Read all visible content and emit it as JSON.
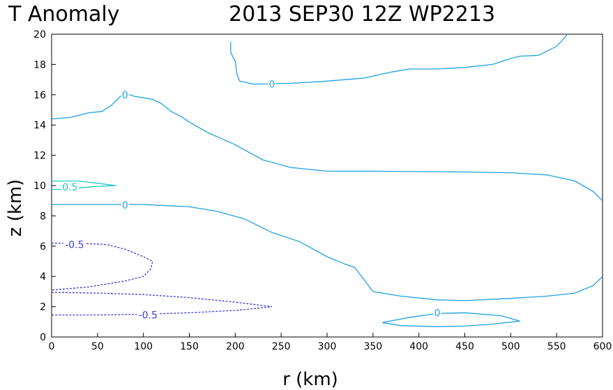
{
  "chart_data": {
    "type": "contour",
    "title_left": "T Anomaly",
    "title_right": "2013 SEP30 12Z   WP2213",
    "xlabel": "r (km)",
    "ylabel": "z (km)",
    "xlim": [
      0,
      600
    ],
    "ylim": [
      0,
      20
    ],
    "xticks": [
      "0",
      "50",
      "100",
      "150",
      "200",
      "250",
      "300",
      "350",
      "400",
      "450",
      "500",
      "550",
      "600"
    ],
    "yticks": [
      "0",
      "2",
      "4",
      "6",
      "8",
      "10",
      "12",
      "14",
      "16",
      "18",
      "20"
    ],
    "grid": false,
    "colors": {
      "zero": "#1ea0e6",
      "positive": "#1ec8c8",
      "negative": "#3c3cdc"
    },
    "contours": [
      {
        "level": 0,
        "label": "0",
        "label_pos": [
          240,
          16.7
        ],
        "style": "solid",
        "color_key": "zero",
        "points": [
          [
            195,
            19.5
          ],
          [
            195,
            18.8
          ],
          [
            200,
            18.2
          ],
          [
            202,
            17.3
          ],
          [
            205,
            16.9
          ],
          [
            220,
            16.7
          ],
          [
            260,
            16.75
          ],
          [
            300,
            16.9
          ],
          [
            340,
            17.1
          ],
          [
            370,
            17.5
          ],
          [
            390,
            17.7
          ],
          [
            420,
            17.7
          ],
          [
            450,
            17.8
          ],
          [
            480,
            18.0
          ],
          [
            500,
            18.4
          ],
          [
            510,
            18.55
          ],
          [
            530,
            18.6
          ],
          [
            550,
            19.2
          ],
          [
            562,
            20
          ]
        ]
      },
      {
        "level": 0,
        "label": "0",
        "label_pos": [
          80,
          16.0
        ],
        "style": "solid",
        "color_key": "zero",
        "points": [
          [
            0,
            14.4
          ],
          [
            20,
            14.5
          ],
          [
            40,
            14.8
          ],
          [
            55,
            14.9
          ],
          [
            65,
            15.3
          ],
          [
            75,
            15.9
          ],
          [
            80,
            16.1
          ],
          [
            90,
            15.9
          ],
          [
            110,
            15.7
          ],
          [
            120,
            15.4
          ],
          [
            130,
            14.9
          ],
          [
            140,
            14.6
          ],
          [
            150,
            14.2
          ],
          [
            170,
            13.5
          ],
          [
            200,
            12.7
          ],
          [
            230,
            11.7
          ],
          [
            260,
            11.2
          ],
          [
            300,
            10.95
          ],
          [
            350,
            10.95
          ],
          [
            400,
            10.92
          ],
          [
            450,
            10.9
          ],
          [
            500,
            10.85
          ],
          [
            540,
            10.7
          ],
          [
            570,
            10.3
          ],
          [
            590,
            9.6
          ],
          [
            600,
            9.0
          ]
        ]
      },
      {
        "level": 0,
        "label": "0",
        "label_pos": [
          80,
          8.7
        ],
        "style": "solid",
        "color_key": "zero",
        "points": [
          [
            0,
            8.75
          ],
          [
            50,
            8.75
          ],
          [
            100,
            8.75
          ],
          [
            150,
            8.6
          ],
          [
            180,
            8.3
          ],
          [
            210,
            7.8
          ],
          [
            240,
            6.9
          ],
          [
            270,
            6.3
          ],
          [
            300,
            5.3
          ],
          [
            320,
            4.8
          ],
          [
            330,
            4.6
          ],
          [
            340,
            3.8
          ],
          [
            350,
            3.0
          ],
          [
            380,
            2.7
          ],
          [
            420,
            2.45
          ],
          [
            450,
            2.4
          ],
          [
            500,
            2.55
          ],
          [
            540,
            2.7
          ],
          [
            570,
            2.9
          ],
          [
            590,
            3.4
          ],
          [
            600,
            4.0
          ]
        ]
      },
      {
        "level": 0,
        "label": "0",
        "label_pos": [
          420,
          1.6
        ],
        "style": "solid",
        "color_key": "zero",
        "points": [
          [
            360,
            0.95
          ],
          [
            390,
            1.3
          ],
          [
            420,
            1.55
          ],
          [
            450,
            1.6
          ],
          [
            490,
            1.4
          ],
          [
            510,
            1.05
          ],
          [
            480,
            0.85
          ],
          [
            450,
            0.72
          ],
          [
            420,
            0.68
          ],
          [
            380,
            0.75
          ],
          [
            360,
            0.95
          ]
        ]
      },
      {
        "level": 0.5,
        "label": "0.5",
        "label_pos": [
          20,
          9.9
        ],
        "style": "solid",
        "color_key": "positive",
        "points": [
          [
            0,
            10.3
          ],
          [
            30,
            10.3
          ],
          [
            50,
            10.15
          ],
          [
            70,
            10.0
          ],
          [
            50,
            9.95
          ],
          [
            30,
            9.85
          ],
          [
            10,
            9.75
          ],
          [
            0,
            9.75
          ]
        ]
      },
      {
        "level": -0.5,
        "label": "-0.5",
        "label_pos": [
          25,
          6.1
        ],
        "style": "dashed",
        "color_key": "negative",
        "points": [
          [
            0,
            6.2
          ],
          [
            30,
            6.2
          ],
          [
            60,
            6.1
          ],
          [
            80,
            5.8
          ],
          [
            100,
            5.3
          ],
          [
            110,
            5.0
          ],
          [
            108,
            4.5
          ],
          [
            100,
            4.0
          ],
          [
            80,
            3.7
          ],
          [
            40,
            3.3
          ],
          [
            0,
            3.1
          ]
        ]
      },
      {
        "level": -0.5,
        "label": "-0.5",
        "label_pos": [
          105,
          1.45
        ],
        "style": "dashed",
        "color_key": "negative",
        "points": [
          [
            0,
            2.95
          ],
          [
            50,
            2.9
          ],
          [
            100,
            2.8
          ],
          [
            150,
            2.6
          ],
          [
            200,
            2.3
          ],
          [
            240,
            2.0
          ],
          [
            200,
            1.75
          ],
          [
            150,
            1.6
          ],
          [
            100,
            1.5
          ],
          [
            50,
            1.45
          ],
          [
            0,
            1.45
          ]
        ]
      }
    ]
  }
}
